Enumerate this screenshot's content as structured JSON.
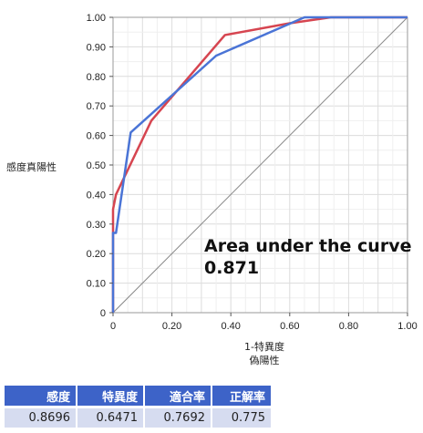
{
  "chart_data": {
    "type": "line",
    "ylabel": "感度真陽性",
    "xlabel": "1-特異度",
    "xlabel2": "偽陽性",
    "xlim": [
      0,
      1
    ],
    "ylim": [
      0,
      1
    ],
    "x_ticks": [
      "0",
      "0.20",
      "0.40",
      "0.60",
      "0.80",
      "1.00"
    ],
    "y_ticks": [
      "0",
      "0.10",
      "0.20",
      "0.30",
      "0.40",
      "0.50",
      "0.60",
      "0.70",
      "0.80",
      "0.90",
      "1.00"
    ],
    "grid": true,
    "annotation": [
      "Area under the curve",
      "0.871"
    ],
    "series": [
      {
        "color": "#d64550",
        "x": [
          0,
          0,
          0.01,
          0.13,
          0.38,
          0.6,
          0.74,
          1.0
        ],
        "y": [
          0,
          0.35,
          0.4,
          0.65,
          0.94,
          0.98,
          1.0,
          1.0
        ]
      },
      {
        "color": "#4a74d6",
        "x": [
          0,
          0,
          0.01,
          0.06,
          0.35,
          0.65,
          1.0
        ],
        "y": [
          0,
          0.27,
          0.27,
          0.61,
          0.87,
          1.0,
          1.0
        ]
      }
    ],
    "reference_line": {
      "color": "#888888",
      "x": [
        0,
        1
      ],
      "y": [
        0,
        1
      ]
    }
  },
  "table": {
    "headers": [
      "感度",
      "特異度",
      "適合率",
      "正解率"
    ],
    "values": [
      "0.8696",
      "0.6471",
      "0.7692",
      "0.775"
    ]
  }
}
